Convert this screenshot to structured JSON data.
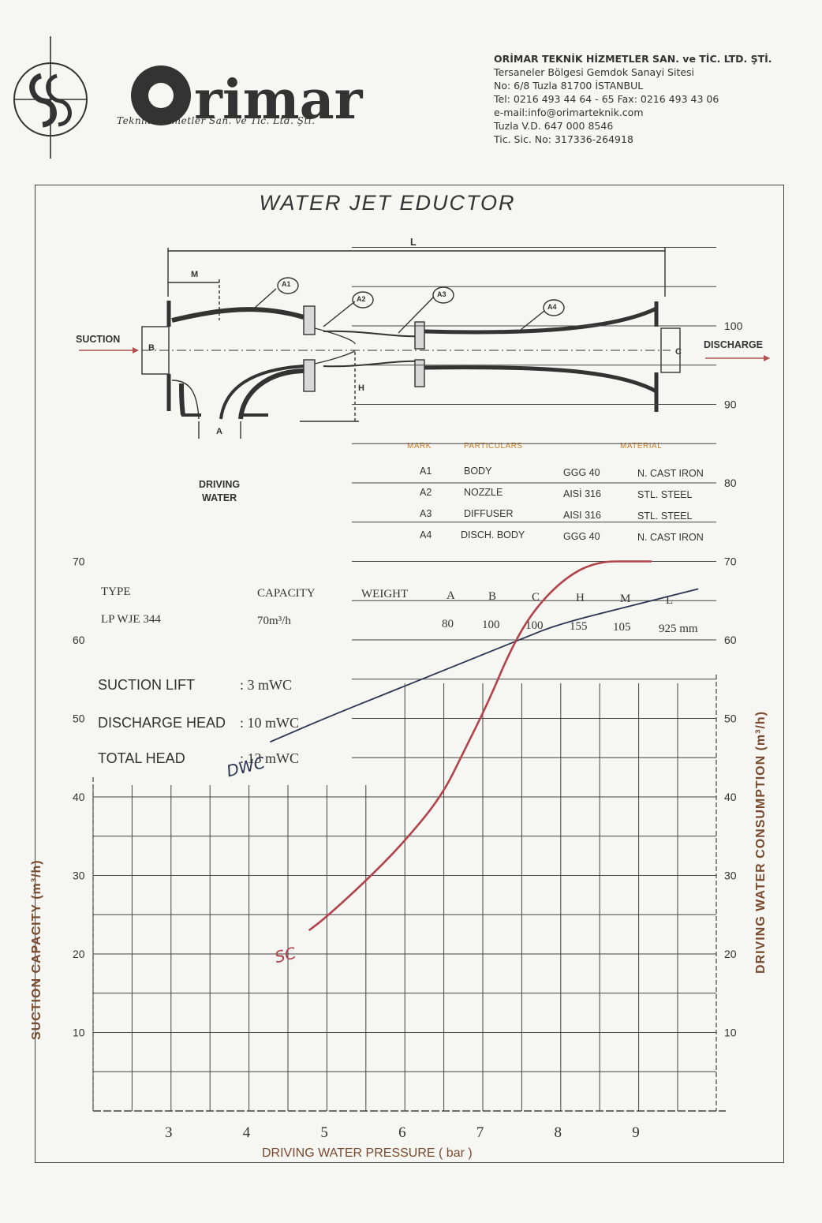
{
  "logo": {
    "name": "Orimar",
    "tagline": "Teknik Hizmetler San. ve Tic. Ltd. Şti."
  },
  "company": {
    "lines": [
      "ORİMAR TEKNİK HİZMETLER SAN. ve TİC. LTD. ŞTİ.",
      "Tersaneler Bölgesi Gemdok Sanayi Sitesi",
      "No: 6/8  Tuzla 81700 İSTANBUL",
      "Tel: 0216 493 44 64 - 65   Fax: 0216 493 43 06",
      "e-mail:info@orimarteknik.com",
      "Tuzla V.D. 647 000 8546",
      "Tic. Sic. No: 317336-264918"
    ]
  },
  "title": "WATER JET EDUCTOR",
  "diagram": {
    "labels": {
      "suction": "SUCTION",
      "discharge": "DISCHARGE",
      "driving_water_1": "DRIVING",
      "driving_water_2": "WATER",
      "L": "L",
      "M": "M",
      "B": "B",
      "C": "C",
      "H": "H",
      "A": "A",
      "A1": "A1",
      "A2": "A2",
      "A3": "A3",
      "A4": "A4"
    }
  },
  "parts_table": {
    "headers": {
      "mark": "MARK",
      "particulars": "PARTICULARS",
      "material": "MATERIAL"
    },
    "rows": [
      {
        "mark": "A1",
        "particular": "BODY",
        "grade": "GGG 40",
        "material": "N. CAST IRON"
      },
      {
        "mark": "A2",
        "particular": "NOZZLE",
        "grade": "AISİ 316",
        "material": "STL. STEEL"
      },
      {
        "mark": "A3",
        "particular": "DIFFUSER",
        "grade": "AISI 316",
        "material": "STL. STEEL"
      },
      {
        "mark": "A4",
        "particular": "DISCH. BODY",
        "grade": "GGG 40",
        "material": "N. CAST IRON"
      }
    ]
  },
  "spec_table": {
    "headers": {
      "type": "TYPE",
      "capacity": "CAPACITY",
      "weight": "WEIGHT",
      "a": "A",
      "b": "B",
      "c": "C",
      "h": "H",
      "m": "M",
      "l": "L"
    },
    "row": {
      "type": "LP WJE 344",
      "capacity": "70m³/h",
      "weight": "",
      "a": "80",
      "b": "100",
      "c": "100",
      "h": "155",
      "m": "105",
      "l": "925 mm"
    }
  },
  "conditions": [
    {
      "label": "SUCTION LIFT",
      "value": ": 3  mWC"
    },
    {
      "label": "DISCHARGE HEAD",
      "value": ": 10  mWC"
    },
    {
      "label": "TOTAL HEAD",
      "value": ": 13  mWC"
    }
  ],
  "chart_data": {
    "type": "line",
    "xlabel": "DRIVING WATER PRESSURE ( bar )",
    "ylabel_left": "SUCTION CAPACITY (m³/h)",
    "ylabel_right": "DRIVING WATER CONSUMPTION (m³/h)",
    "x_ticks": [
      3,
      4,
      5,
      6,
      7,
      8,
      9
    ],
    "y_left_ticks": [
      10,
      20,
      30,
      40,
      50,
      60,
      70
    ],
    "y_right_ticks": [
      10,
      20,
      30,
      40,
      50,
      60,
      70,
      80,
      90,
      100
    ],
    "xlim": [
      2,
      10.5
    ],
    "ylim": [
      0,
      110
    ],
    "grid": true,
    "series": [
      {
        "name": "DWC",
        "color": "#2b3550",
        "x": [
          4.3,
          5,
          6,
          7,
          7.5,
          8,
          9,
          9.8
        ],
        "y": [
          47,
          50,
          54,
          58,
          60,
          62,
          64.5,
          66.5
        ]
      },
      {
        "name": "SC",
        "color": "#b2434a",
        "x": [
          4.8,
          5,
          5.5,
          6,
          6.5,
          6.8,
          7.1,
          7.4,
          7.7,
          8.1,
          8.5,
          9,
          9.2
        ],
        "y": [
          23,
          24.5,
          29,
          34,
          40,
          46,
          52,
          59,
          64,
          68,
          70,
          70,
          70
        ]
      }
    ]
  }
}
